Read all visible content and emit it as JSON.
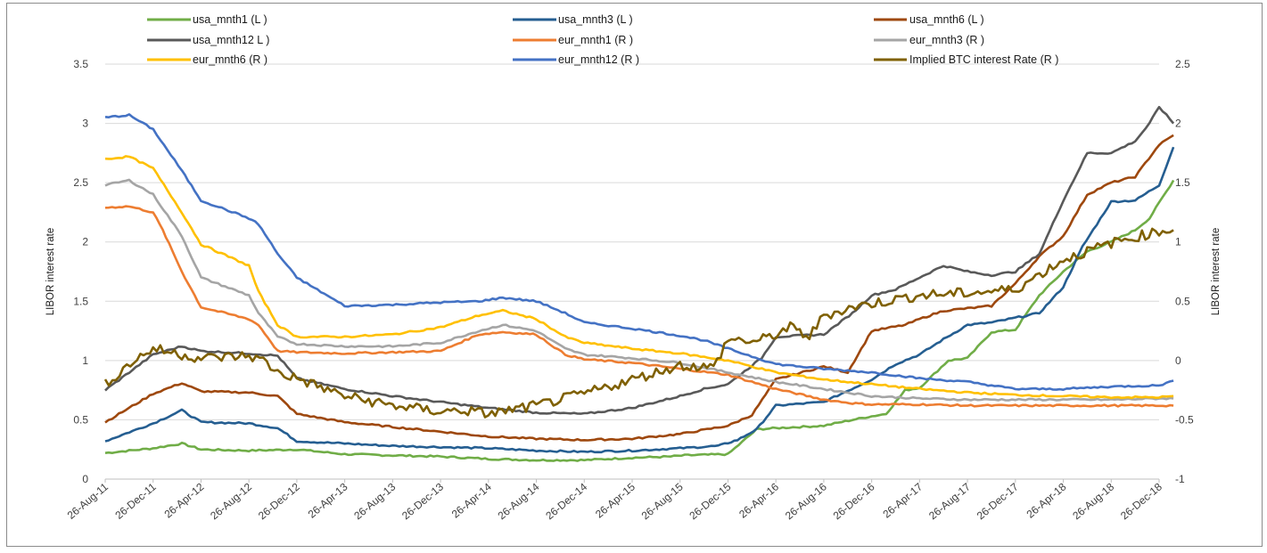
{
  "chart_data": {
    "type": "line",
    "title": "",
    "xlabel": "",
    "ylabel_left": "LIBOR interest rate",
    "ylabel_right": "LIBOR interest rate",
    "ylim_left": [
      0,
      3.5
    ],
    "ylim_right": [
      -1,
      2.5
    ],
    "yticks_left": [
      "0",
      "0.5",
      "1",
      "1.5",
      "2",
      "2.5",
      "3",
      "3.5"
    ],
    "yticks_right": [
      "-1",
      "-0.5",
      "0",
      "0.5",
      "1",
      "1.5",
      "2",
      "2.5"
    ],
    "categories": [
      "26-Aug-11",
      "26-Dec-11",
      "26-Apr-12",
      "26-Aug-12",
      "26-Dec-12",
      "26-Apr-13",
      "26-Aug-13",
      "26-Dec-13",
      "26-Apr-14",
      "26-Aug-14",
      "26-Dec-14",
      "26-Apr-15",
      "26-Aug-15",
      "26-Dec-15",
      "26-Apr-16",
      "26-Aug-16",
      "26-Dec-16",
      "26-Apr-17",
      "26-Aug-17",
      "26-Dec-17",
      "26-Apr-18",
      "26-Aug-18",
      "26-Dec-18"
    ],
    "x_label": [
      "26-Aug-11",
      "26-Dec-11",
      "26-Apr-12",
      "26-Aug-12",
      "26-Dec-12",
      "26-Apr-13",
      "26-Aug-13",
      "26-Dec-13",
      "26-Apr-14",
      "26-Aug-14",
      "26-Dec-14",
      "26-Apr-15",
      "26-Aug-15",
      "26-Dec-15",
      "26-Apr-16",
      "26-Aug-16",
      "26-Dec-16",
      "26-Apr-17",
      "26-Aug-17",
      "26-Dec-17",
      "26-Apr-18",
      "26-Aug-18",
      "26-Dec-18"
    ],
    "legend_placement": "top",
    "grid": true,
    "series": [
      {
        "name": "usa_mnth1 (L )",
        "axis": "left",
        "color": "#70ad47",
        "x": [
          0,
          1,
          1.6,
          2,
          3,
          4,
          5,
          6,
          7,
          8,
          9,
          10,
          11,
          11.8,
          12.1,
          13,
          13.6,
          14,
          15,
          15.6,
          16,
          16.3,
          16.7,
          17,
          17.6,
          18,
          18.5,
          19,
          19.5,
          20,
          20.5,
          21,
          21.5,
          21.8,
          22,
          22.3
        ],
        "values": [
          0.22,
          0.26,
          0.3,
          0.25,
          0.24,
          0.25,
          0.21,
          0.2,
          0.19,
          0.17,
          0.16,
          0.16,
          0.18,
          0.19,
          0.2,
          0.21,
          0.42,
          0.43,
          0.45,
          0.5,
          0.53,
          0.55,
          0.75,
          0.77,
          1.0,
          1.02,
          1.24,
          1.26,
          1.55,
          1.75,
          1.92,
          2.0,
          2.1,
          2.2,
          2.33,
          2.52
        ]
      },
      {
        "name": "usa_mnth3 (L )",
        "axis": "left",
        "color": "#255e91",
        "x": [
          0,
          1,
          1.6,
          2,
          3,
          3.6,
          4,
          5,
          6,
          7,
          8,
          9,
          10,
          11,
          12,
          12.8,
          13.2,
          13.6,
          14,
          15,
          16,
          16.5,
          17,
          17.5,
          18,
          18.5,
          19,
          19.5,
          20,
          20.4,
          21,
          21.5,
          22,
          22.3
        ],
        "values": [
          0.32,
          0.47,
          0.58,
          0.48,
          0.47,
          0.43,
          0.32,
          0.3,
          0.28,
          0.27,
          0.26,
          0.24,
          0.23,
          0.24,
          0.26,
          0.28,
          0.33,
          0.42,
          0.62,
          0.65,
          0.84,
          0.97,
          1.05,
          1.18,
          1.3,
          1.32,
          1.36,
          1.4,
          1.62,
          1.96,
          2.34,
          2.35,
          2.48,
          2.8
        ]
      },
      {
        "name": "usa_mnth6 (L )",
        "axis": "left",
        "color": "#9e480e",
        "x": [
          0,
          1,
          1.6,
          2,
          3,
          3.6,
          4,
          5,
          6,
          7,
          8,
          9,
          10,
          11,
          12,
          13,
          13.5,
          14,
          15,
          15.5,
          16,
          16.7,
          17,
          17.5,
          18,
          18.5,
          19,
          19.5,
          20,
          20.5,
          21,
          21.5,
          22,
          22.3
        ],
        "values": [
          0.48,
          0.72,
          0.81,
          0.74,
          0.73,
          0.7,
          0.55,
          0.48,
          0.44,
          0.4,
          0.36,
          0.34,
          0.33,
          0.34,
          0.38,
          0.45,
          0.54,
          0.84,
          0.95,
          0.9,
          1.25,
          1.3,
          1.35,
          1.42,
          1.44,
          1.46,
          1.65,
          1.88,
          2.05,
          2.4,
          2.5,
          2.55,
          2.82,
          2.9
        ]
      },
      {
        "name": "usa_mnth12 L )",
        "axis": "left",
        "color": "#595959",
        "x": [
          0,
          1,
          1.6,
          2,
          3,
          3.6,
          4,
          5,
          6,
          7,
          8,
          9,
          10,
          11,
          12,
          12.5,
          13,
          13.7,
          14,
          15,
          15.6,
          16,
          16.5,
          17,
          17.5,
          18,
          18.5,
          19,
          19.5,
          20,
          20.5,
          21,
          21.5,
          21.8,
          22,
          22.3
        ],
        "values": [
          0.75,
          1.05,
          1.12,
          1.08,
          1.06,
          1.04,
          0.85,
          0.76,
          0.7,
          0.65,
          0.6,
          0.56,
          0.55,
          0.6,
          0.7,
          0.76,
          0.8,
          1.02,
          1.2,
          1.22,
          1.4,
          1.55,
          1.6,
          1.7,
          1.8,
          1.75,
          1.72,
          1.75,
          1.9,
          2.35,
          2.75,
          2.75,
          2.85,
          3.0,
          3.14,
          3.0
        ]
      },
      {
        "name": "eur_mnth1 (R )",
        "axis": "right",
        "color": "#ed7d31",
        "x": [
          0,
          0.5,
          1,
          1.2,
          1.6,
          2,
          3,
          3.2,
          3.6,
          4,
          5,
          6,
          7,
          7.8,
          8.3,
          9,
          9.6,
          10,
          11,
          12,
          13,
          14,
          15,
          15.6,
          16,
          17,
          18,
          19,
          20,
          21,
          22,
          22.3
        ],
        "values": [
          1.29,
          1.3,
          1.25,
          1.1,
          0.75,
          0.45,
          0.35,
          0.3,
          0.08,
          0.07,
          0.06,
          0.07,
          0.08,
          0.22,
          0.24,
          0.22,
          0.05,
          0.01,
          -0.02,
          -0.07,
          -0.12,
          -0.24,
          -0.33,
          -0.36,
          -0.37,
          -0.37,
          -0.38,
          -0.38,
          -0.38,
          -0.38,
          -0.38,
          -0.38
        ]
      },
      {
        "name": "eur_mnth3 (R )",
        "axis": "right",
        "color": "#a5a5a5",
        "x": [
          0,
          0.5,
          1,
          1.6,
          2,
          3,
          3.2,
          3.6,
          4,
          5,
          6,
          7,
          7.8,
          8.3,
          9,
          9.6,
          10,
          11,
          12,
          13,
          14,
          15,
          16,
          17,
          18,
          19,
          20,
          21,
          22,
          22.3
        ],
        "values": [
          1.48,
          1.52,
          1.4,
          1.05,
          0.7,
          0.55,
          0.4,
          0.2,
          0.14,
          0.12,
          0.12,
          0.15,
          0.25,
          0.3,
          0.25,
          0.1,
          0.05,
          0.02,
          -0.02,
          -0.1,
          -0.18,
          -0.24,
          -0.3,
          -0.32,
          -0.33,
          -0.33,
          -0.33,
          -0.33,
          -0.32,
          -0.32
        ]
      },
      {
        "name": "eur_mnth6 (R )",
        "axis": "right",
        "color": "#ffc000",
        "x": [
          0,
          0.5,
          1,
          1.6,
          2,
          3,
          3.2,
          3.6,
          4,
          5,
          6,
          7,
          7.8,
          8.3,
          9,
          9.6,
          10,
          11,
          12,
          13,
          14,
          15,
          16,
          17,
          18,
          19,
          20,
          21,
          22,
          22.3
        ],
        "values": [
          1.7,
          1.72,
          1.62,
          1.25,
          0.98,
          0.8,
          0.58,
          0.3,
          0.2,
          0.2,
          0.22,
          0.28,
          0.38,
          0.42,
          0.35,
          0.2,
          0.15,
          0.1,
          0.06,
          0.0,
          -0.1,
          -0.16,
          -0.2,
          -0.24,
          -0.27,
          -0.29,
          -0.3,
          -0.31,
          -0.31,
          -0.3
        ]
      },
      {
        "name": "eur_mnth12 (R )",
        "axis": "right",
        "color": "#4472c4",
        "x": [
          0,
          0.5,
          1,
          1.6,
          2,
          3,
          3.2,
          3.6,
          4,
          5,
          6,
          7,
          7.8,
          8.3,
          9,
          9.6,
          10,
          11,
          12,
          12.5,
          13,
          14,
          15,
          16,
          17,
          18,
          19,
          20,
          21,
          22,
          22.3
        ],
        "values": [
          2.05,
          2.07,
          1.95,
          1.6,
          1.35,
          1.2,
          1.15,
          0.9,
          0.7,
          0.46,
          0.47,
          0.49,
          0.5,
          0.53,
          0.5,
          0.4,
          0.32,
          0.27,
          0.21,
          0.17,
          0.1,
          -0.03,
          -0.07,
          -0.1,
          -0.15,
          -0.18,
          -0.24,
          -0.24,
          -0.22,
          -0.21,
          -0.17
        ]
      },
      {
        "name": "Implied BTC interest Rate (R )",
        "axis": "right",
        "color": "#7f6000",
        "x": [
          0,
          0.3,
          0.6,
          1,
          1.6,
          2,
          3,
          3.3,
          3.6,
          4,
          5,
          6,
          7,
          7.5,
          8,
          9,
          10,
          11,
          12,
          12.7,
          13,
          13.6,
          14,
          14.3,
          14.7,
          15,
          15.6,
          16,
          17,
          18,
          19,
          20,
          21,
          22,
          22.3
        ],
        "values": [
          -0.2,
          -0.1,
          0.0,
          0.1,
          0.05,
          0.02,
          0.04,
          0.0,
          -0.1,
          -0.15,
          -0.3,
          -0.38,
          -0.43,
          -0.42,
          -0.45,
          -0.38,
          -0.28,
          -0.16,
          -0.04,
          -0.06,
          0.18,
          0.16,
          0.22,
          0.28,
          0.2,
          0.38,
          0.45,
          0.48,
          0.55,
          0.57,
          0.6,
          0.85,
          0.99,
          1.09,
          1.1
        ]
      }
    ]
  }
}
